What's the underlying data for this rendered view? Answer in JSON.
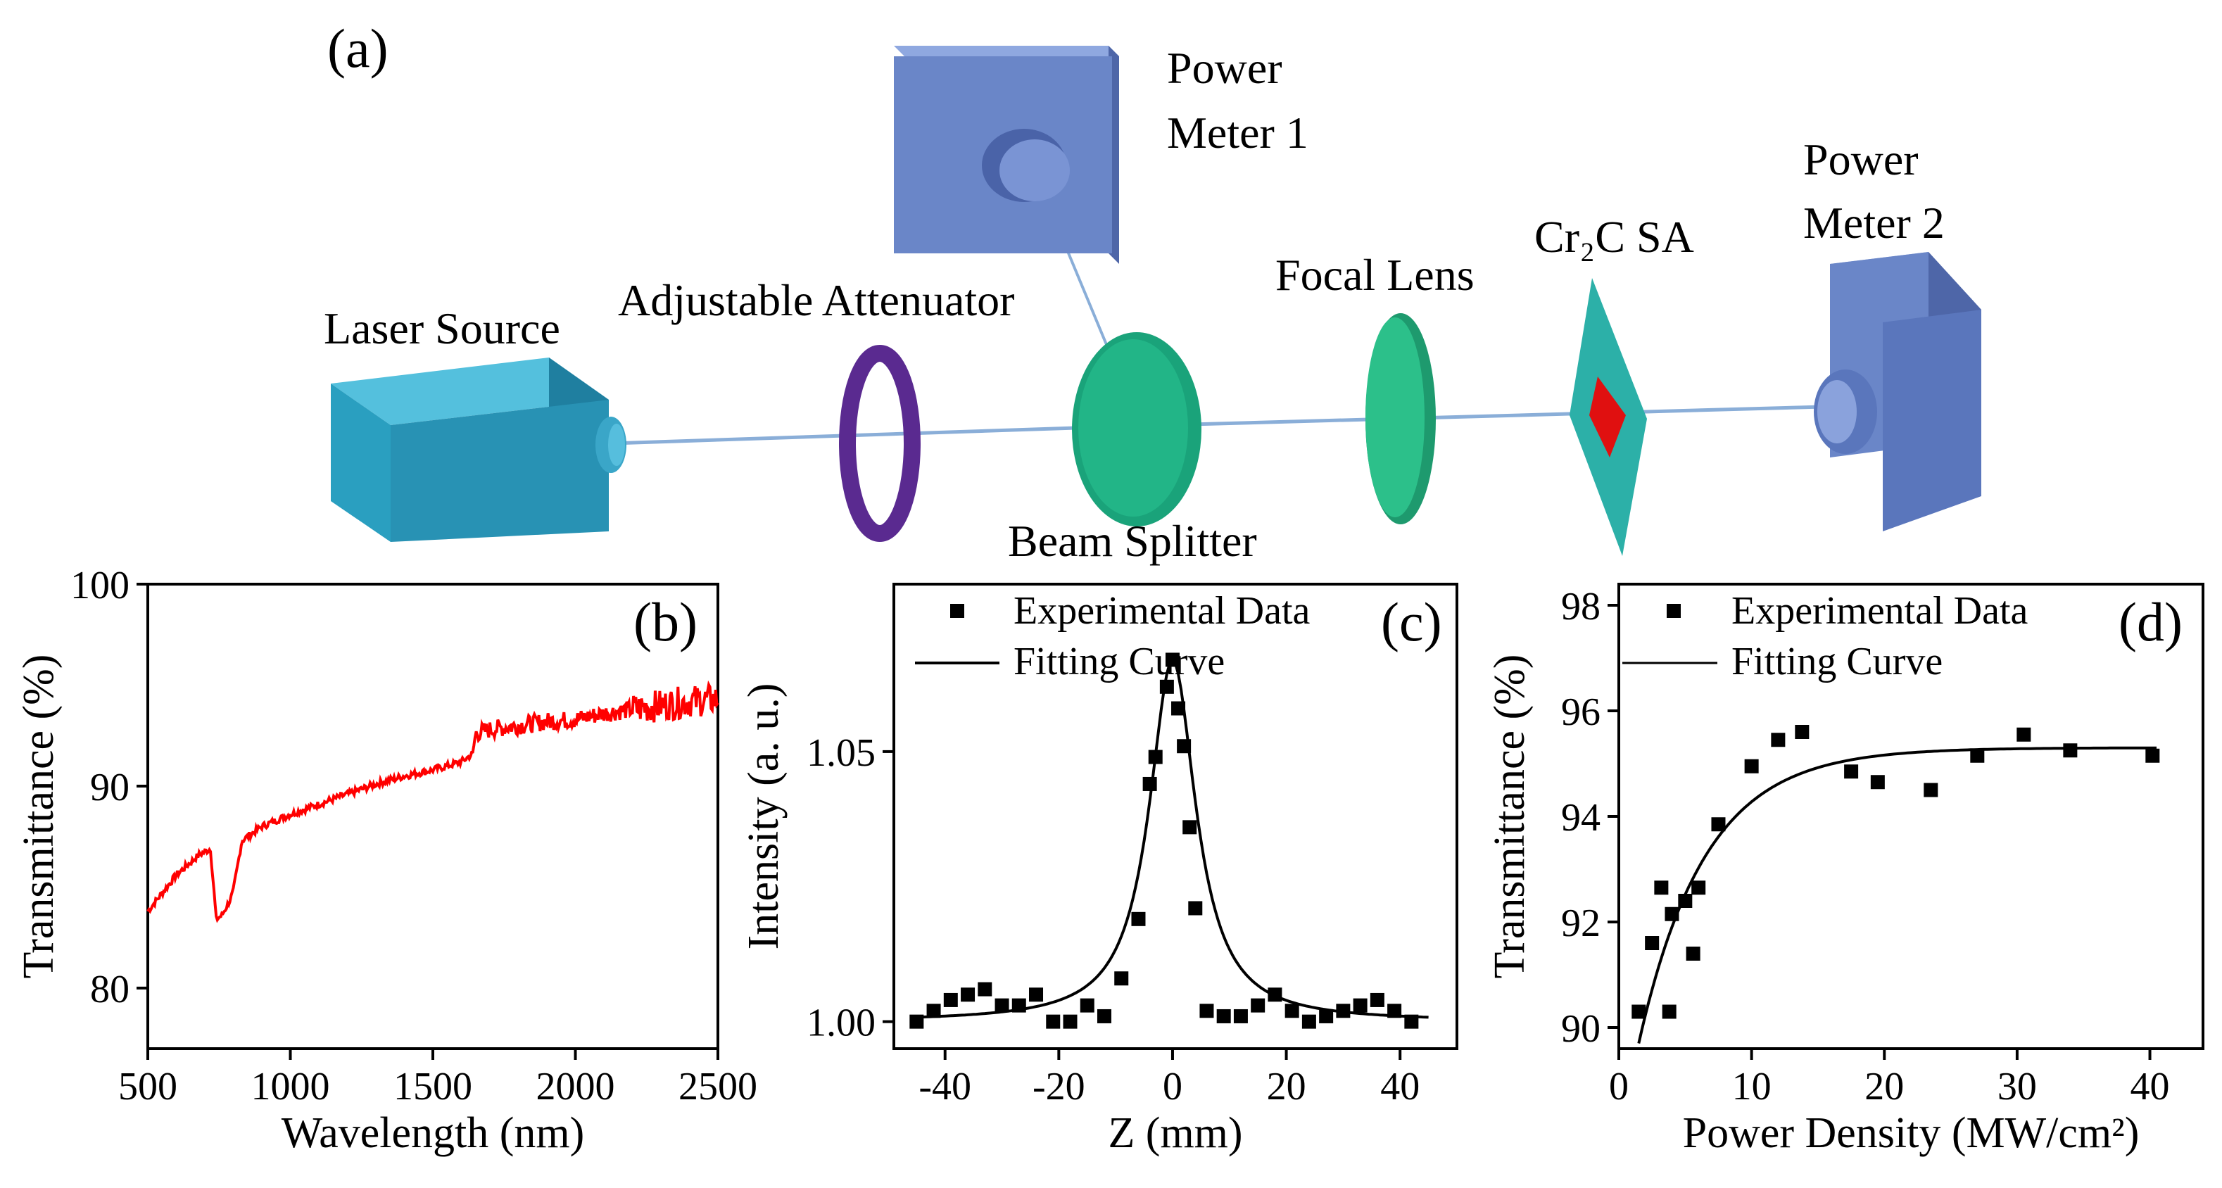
{
  "figure": {
    "panel_a": {
      "label": "(a)",
      "components": {
        "laser_source": "Laser Source",
        "attenuator": "Adjustable Attenuator",
        "beam_splitter": "Beam Splitter",
        "power_meter_1": [
          "Power",
          "Meter 1"
        ],
        "focal_lens": "Focal Lens",
        "sa": "Cr₂C SA",
        "power_meter_2": [
          "Power",
          "Meter 2"
        ]
      }
    },
    "colors": {
      "laser": "#2a9fc0",
      "attenuator": "#5a2a90",
      "splitter": "#1aa37a",
      "lens": "#22b07f",
      "sa_plate": "#2cb0a8",
      "sa_core": "#e01010",
      "meter": "#6a86c8",
      "beam": "#8aaed8",
      "spectrum_line": "#ff0000"
    }
  },
  "chart_data": [
    {
      "id": "b",
      "panel_label": "(b)",
      "type": "line",
      "xlabel": "Wavelength (nm)",
      "ylabel": "Transmittance (%)",
      "xlim": [
        500,
        2500
      ],
      "ylim": [
        77,
        100
      ],
      "xticks": [
        500,
        1000,
        1500,
        2000,
        2500
      ],
      "xtick_labels": [
        "500",
        "1000",
        "1500",
        "2000",
        "2500"
      ],
      "yticks": [
        80,
        90,
        100
      ],
      "ytick_labels": [
        "80",
        "90",
        "100"
      ],
      "series": [
        {
          "name": "Transmittance",
          "x": [
            500,
            600,
            680,
            720,
            740,
            760,
            790,
            800,
            830,
            900,
            1000,
            1100,
            1200,
            1300,
            1400,
            1500,
            1600,
            1640,
            1650,
            1700,
            1800,
            1900,
            2000,
            2100,
            2200,
            2300,
            2400,
            2500
          ],
          "y": [
            83.8,
            85.6,
            86.6,
            86.9,
            83.4,
            83.6,
            84.4,
            84.8,
            87.3,
            88.0,
            88.6,
            89.1,
            89.6,
            90.1,
            90.5,
            90.8,
            91.2,
            91.6,
            92.6,
            92.8,
            93.0,
            93.2,
            93.3,
            93.6,
            93.8,
            94.0,
            94.2,
            94.3
          ]
        }
      ]
    },
    {
      "id": "c",
      "panel_label": "(c)",
      "type": "scatter",
      "xlabel": "Z (mm)",
      "ylabel": "Intensity (a. u.)",
      "xlim": [
        -49,
        50
      ],
      "ylim": [
        0.995,
        1.081
      ],
      "xticks": [
        -40,
        -20,
        0,
        20,
        40
      ],
      "xtick_labels": [
        "-40",
        "-20",
        "0",
        "20",
        "40"
      ],
      "yticks": [
        1.0,
        1.05
      ],
      "ytick_labels": [
        "1.00",
        "1.05"
      ],
      "legend": [
        "Experimental Data",
        "Fitting Curve"
      ],
      "series": [
        {
          "name": "Experimental Data",
          "x": [
            -45,
            -42,
            -39,
            -36,
            -33,
            -30,
            -27,
            -24,
            -21,
            -18,
            -15,
            -12,
            -9,
            -6,
            -4,
            -3,
            -1,
            0,
            1,
            2,
            3,
            4,
            6,
            9,
            12,
            15,
            18,
            21,
            24,
            27,
            30,
            33,
            36,
            39,
            42
          ],
          "y": [
            1.0,
            1.002,
            1.004,
            1.005,
            1.006,
            1.003,
            1.003,
            1.005,
            1.0,
            1.0,
            1.003,
            1.001,
            1.008,
            1.019,
            1.044,
            1.049,
            1.062,
            1.067,
            1.058,
            1.051,
            1.036,
            1.021,
            1.002,
            1.001,
            1.001,
            1.003,
            1.005,
            1.002,
            1.0,
            1.001,
            1.002,
            1.003,
            1.004,
            1.002,
            1.0
          ]
        },
        {
          "name": "Fitting Curve",
          "model": "lorentzian",
          "baseline": 1.0,
          "amplitude": 0.067,
          "center": 0,
          "width": 5
        }
      ]
    },
    {
      "id": "d",
      "panel_label": "(d)",
      "type": "scatter",
      "xlabel": "Power Density (MW/cm²)",
      "ylabel": "Transmittance (%)",
      "xlim": [
        0,
        44
      ],
      "ylim": [
        89.6,
        98.4
      ],
      "xticks": [
        0,
        10,
        20,
        30,
        40
      ],
      "xtick_labels": [
        "0",
        "10",
        "20",
        "30",
        "40"
      ],
      "yticks": [
        90,
        92,
        94,
        96,
        98
      ],
      "ytick_labels": [
        "90",
        "92",
        "94",
        "96",
        "98"
      ],
      "legend": [
        "Experimental Data",
        "Fitting Curve"
      ],
      "series": [
        {
          "name": "Experimental Data",
          "x": [
            1.5,
            2.5,
            3.2,
            3.8,
            4.0,
            5.0,
            5.6,
            6.0,
            7.5,
            10.0,
            12.0,
            13.8,
            17.5,
            19.5,
            23.5,
            27.0,
            30.5,
            34.0,
            40.2
          ],
          "y": [
            90.3,
            91.6,
            92.65,
            90.3,
            92.15,
            92.4,
            91.4,
            92.65,
            93.85,
            94.95,
            95.45,
            95.6,
            94.85,
            94.65,
            94.5,
            95.15,
            95.55,
            95.25,
            95.15
          ]
        },
        {
          "name": "Fitting Curve",
          "model": "saturable absorption",
          "x_start": 1.5,
          "x_end": 40.5,
          "asymptote": 95.3,
          "depth": 5.6,
          "saturation": 5.0
        }
      ]
    }
  ]
}
